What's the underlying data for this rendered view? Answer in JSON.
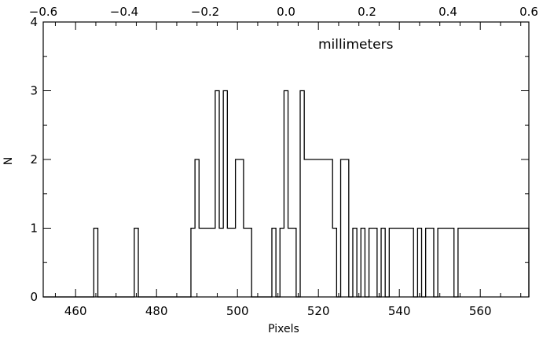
{
  "chart_data": {
    "type": "histogram",
    "xlabel": "Pixels",
    "ylabel": "N",
    "annotation": "millimeters",
    "xlim": [
      452,
      572
    ],
    "ylim": [
      0,
      4
    ],
    "x_ticks": [
      460,
      480,
      500,
      520,
      540,
      560
    ],
    "y_ticks": [
      0,
      1,
      2,
      3,
      4
    ],
    "top_axis": {
      "range": [
        -0.6,
        0.6
      ],
      "ticks": [
        -0.6,
        -0.4,
        -0.2,
        0.0,
        0.2,
        0.4,
        0.6
      ],
      "tick_labels": [
        "−0.6",
        "−0.4",
        "−0.2",
        "0.0",
        "0.2",
        "0.4",
        "0.6"
      ]
    },
    "step": {
      "x": [
        452,
        464.5,
        465.5,
        474.5,
        475.5,
        488.5,
        489.5,
        490.5,
        491.5,
        494.5,
        495.5,
        496.5,
        497.5,
        498.5,
        499.5,
        501.5,
        503.5,
        504.5,
        508.5,
        509.5,
        510.5,
        511.5,
        512.5,
        514.5,
        515.5,
        516.5,
        523.5,
        524.5,
        525.5,
        527.5,
        528.5,
        529.5,
        530.5,
        531.5,
        532.5,
        534.5,
        535.5,
        536.5,
        537.5,
        543.5,
        544.5,
        545.5,
        546.5,
        548.5,
        549.5,
        553.5,
        554.5,
        572
      ],
      "y": [
        0,
        1,
        0,
        1,
        0,
        1,
        2,
        1,
        1,
        3,
        1,
        3,
        1,
        1,
        2,
        1,
        0,
        0,
        1,
        0,
        1,
        3,
        1,
        0,
        3,
        2,
        1,
        0,
        2,
        0,
        1,
        0,
        1,
        0,
        1,
        0,
        1,
        0,
        1,
        0,
        1,
        0,
        1,
        0,
        1,
        0,
        1,
        0
      ]
    }
  }
}
